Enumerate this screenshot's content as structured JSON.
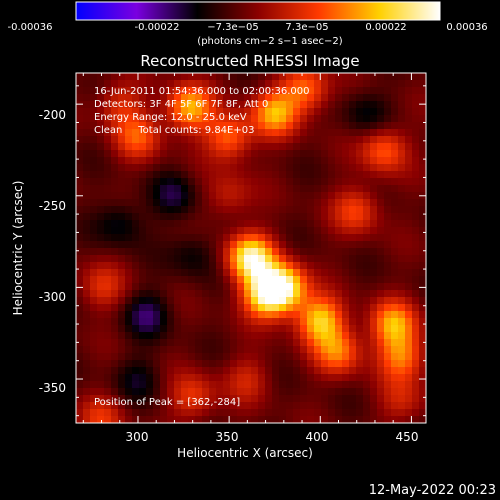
{
  "colorbar": {
    "ticks": [
      "-0.00036",
      "-0.00022",
      "−7.3e−05",
      "7.3e−05",
      "0.00022",
      "0.00036"
    ],
    "unit_label": "(photons cm−2 s−1 asec−2)",
    "stops": [
      "#0000ff",
      "#7a00e0",
      "#000000",
      "#8b0000",
      "#ff3a00",
      "#ffd000",
      "#ffffff"
    ]
  },
  "chart_data": {
    "type": "heatmap",
    "title": "Reconstructed RHESSI Image",
    "xlabel": "Heliocentric X (arcsec)",
    "ylabel": "Heliocentric Y (arcsec)",
    "xlim": [
      266,
      458
    ],
    "ylim": [
      -374,
      -183
    ],
    "x_ticks": [
      300,
      350,
      400,
      450
    ],
    "y_ticks": [
      -200,
      -250,
      -300,
      -350
    ],
    "value_range": [
      -0.00036,
      0.00036
    ],
    "annotations": [
      "16-Jun-2011 01:54:36.000 to 02:00:36.000",
      "Detectors: 3F 4F 5F 6F 7F 8F, Att 0",
      "Energy Range: 12.0 - 25.0 keV",
      "Clean     Total counts: 9.84E+03",
      "Position of Peak = [362,-284]"
    ],
    "sources": [
      {
        "x": 362,
        "y": -284,
        "intensity": 0.00036
      },
      {
        "x": 380,
        "y": -300,
        "intensity": 0.00033
      },
      {
        "x": 370,
        "y": -304,
        "intensity": 0.0003
      },
      {
        "x": 400,
        "y": -318,
        "intensity": 0.00028
      },
      {
        "x": 440,
        "y": -320,
        "intensity": 0.00024
      },
      {
        "x": 445,
        "y": -338,
        "intensity": 0.0002
      },
      {
        "x": 410,
        "y": -335,
        "intensity": 0.0002
      },
      {
        "x": 328,
        "y": -202,
        "intensity": 0.00026
      },
      {
        "x": 375,
        "y": -205,
        "intensity": 0.00024
      },
      {
        "x": 350,
        "y": -218,
        "intensity": 0.0002
      },
      {
        "x": 392,
        "y": -192,
        "intensity": 0.0002
      },
      {
        "x": 435,
        "y": -225,
        "intensity": 0.00018
      },
      {
        "x": 300,
        "y": -218,
        "intensity": 0.00016
      },
      {
        "x": 420,
        "y": -258,
        "intensity": 0.00015
      },
      {
        "x": 330,
        "y": -360,
        "intensity": 0.00014
      },
      {
        "x": 280,
        "y": -300,
        "intensity": 0.00012
      },
      {
        "x": 290,
        "y": -200,
        "intensity": 0.00012
      },
      {
        "x": 280,
        "y": -372,
        "intensity": 0.00012
      },
      {
        "x": 360,
        "y": -350,
        "intensity": 0.0001
      },
      {
        "x": 350,
        "y": -250,
        "intensity": 0.0001
      },
      {
        "x": 445,
        "y": -362,
        "intensity": 0.0001
      },
      {
        "x": 320,
        "y": -250,
        "intensity": -0.0001
      },
      {
        "x": 305,
        "y": -315,
        "intensity": -0.00012
      },
      {
        "x": 290,
        "y": -265,
        "intensity": -0.0001
      },
      {
        "x": 330,
        "y": -282,
        "intensity": -8e-05
      },
      {
        "x": 425,
        "y": -205,
        "intensity": -8e-05
      },
      {
        "x": 300,
        "y": -350,
        "intensity": -8e-05
      }
    ]
  },
  "footer": {
    "datestamp": "12-May-2022 00:23"
  }
}
